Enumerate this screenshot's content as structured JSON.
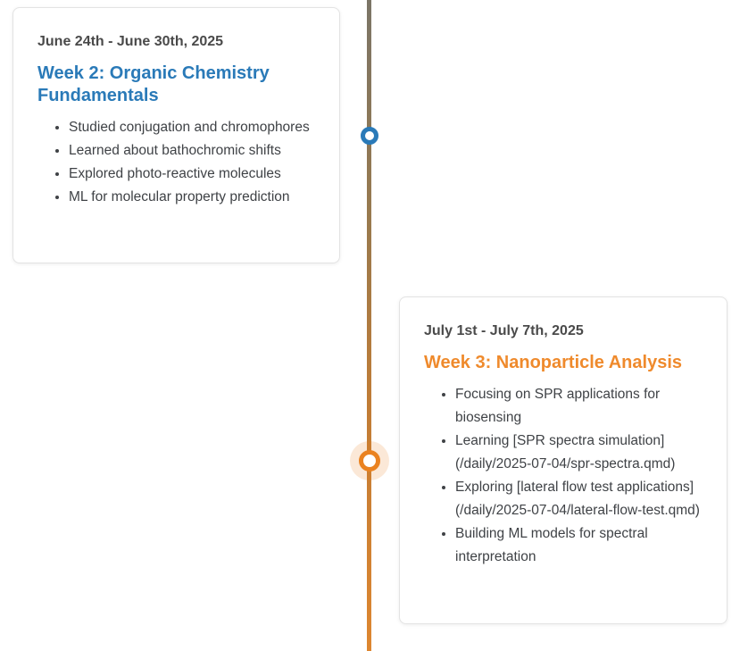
{
  "page": {
    "background_color": "#ffffff"
  },
  "timeline": {
    "line": {
      "top_color": "#7b7567",
      "bottom_color": "#dd8630"
    },
    "entries": [
      {
        "side": "left",
        "date": "June 24th - June 30th, 2025",
        "title": "Week 2: Organic Chemistry Fundamentals",
        "accent_color": "#2a7ab8",
        "marker_color": "#2a7ab8",
        "bullets": [
          "Studied conjugation and chromophores",
          "Learned about bathochromic shifts",
          "Explored photo-reactive molecules",
          "ML for molecular property prediction"
        ]
      },
      {
        "side": "right",
        "date": "July 1st - July 7th, 2025",
        "title": "Week 3: Nanoparticle Analysis",
        "accent_color": "#ef8a2c",
        "marker_color": "#ea8220",
        "marker_halo_color": "rgba(234,130,32,0.18)",
        "bullets": [
          "Focusing on SPR applications for biosensing",
          "Learning [SPR spectra simulation](/daily/2025-07-04/spr-spectra.qmd)",
          "Exploring [lateral flow test applications](/daily/2025-07-04/lateral-flow-test.qmd)",
          "Building ML models for spectral interpretation"
        ]
      }
    ]
  }
}
